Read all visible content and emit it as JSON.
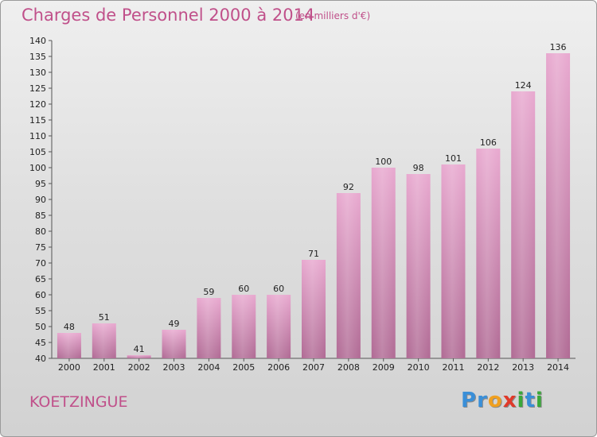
{
  "chart_data": {
    "type": "bar",
    "title": "Charges de Personnel 2000 à 2014",
    "subtitle": "(en milliers d'€)",
    "categories": [
      "2000",
      "2001",
      "2002",
      "2003",
      "2004",
      "2005",
      "2006",
      "2007",
      "2008",
      "2009",
      "2010",
      "2011",
      "2012",
      "2013",
      "2014"
    ],
    "values": [
      48,
      51,
      41,
      49,
      59,
      60,
      60,
      71,
      92,
      100,
      98,
      101,
      106,
      124,
      136
    ],
    "ylim": [
      40,
      140
    ],
    "ytick_step": 5,
    "grid": false,
    "data_labels": true,
    "bar_color": "#d98ab8"
  },
  "commune": "KOETZINGUE",
  "logo": {
    "letters": [
      "P",
      "r",
      "o",
      "x",
      "i",
      "t",
      "i"
    ],
    "colors": [
      "#3a8fd8",
      "#3a8fd8",
      "#f0a020",
      "#e03a2a",
      "#3aa83a",
      "#3a8fd8",
      "#3aa83a"
    ]
  }
}
